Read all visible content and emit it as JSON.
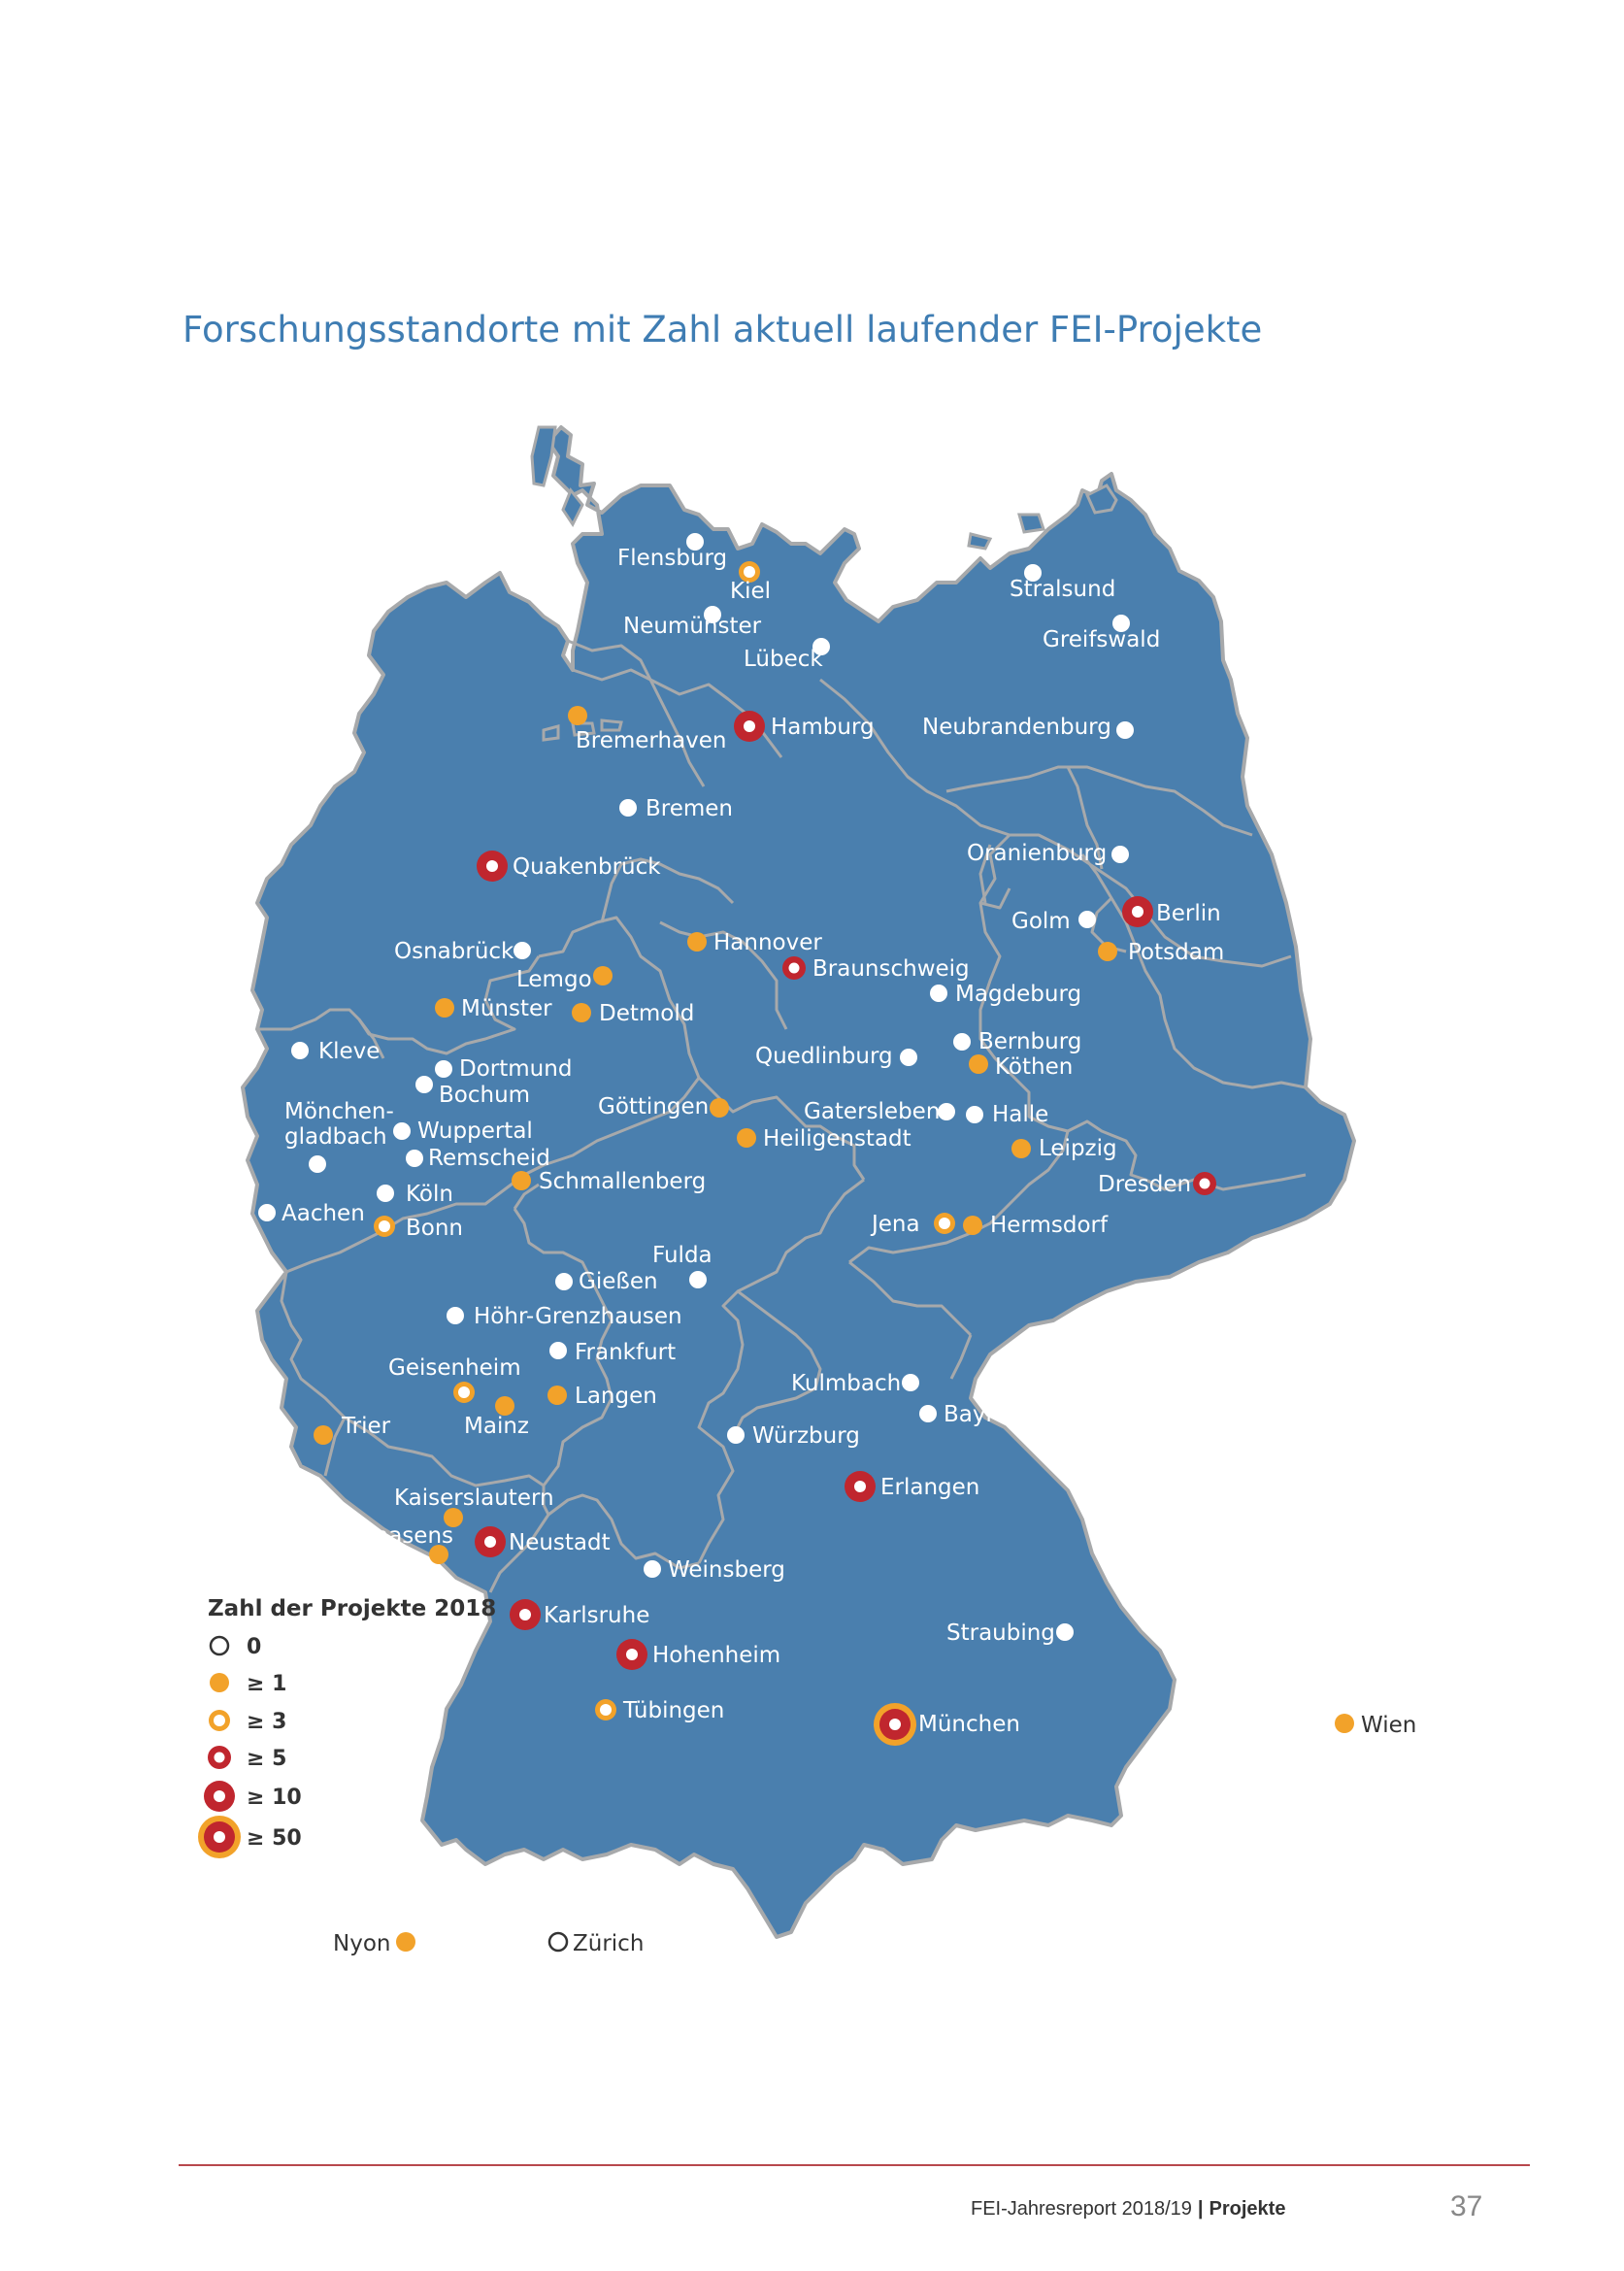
{
  "title": "Forschungsstandorte mit Zahl aktuell laufender FEI-Projekte",
  "colors": {
    "land": "#4a7fae",
    "border": "#a7a9ab",
    "label": "#ffffff",
    "white_marker": "#ffffff",
    "orange": "#f2a22a",
    "red": "#c0262e",
    "title": "#3f7db3",
    "footer_rule": "#b8484c"
  },
  "legend": {
    "title": "Zahl der Projekte 2018",
    "items": [
      {
        "category": "0",
        "label": "0"
      },
      {
        "category": "1",
        "label": "≥ 1"
      },
      {
        "category": "3",
        "label": "≥ 3"
      },
      {
        "category": "5",
        "label": "≥ 5"
      },
      {
        "category": "10",
        "label": "≥ 10"
      },
      {
        "category": "50",
        "label": "≥ 50"
      }
    ]
  },
  "cities": [
    {
      "name": "Flensburg",
      "category": "0"
    },
    {
      "name": "Kiel",
      "category": "3"
    },
    {
      "name": "Neumünster",
      "category": "0"
    },
    {
      "name": "Lübeck",
      "category": "0"
    },
    {
      "name": "Stralsund",
      "category": "0"
    },
    {
      "name": "Greifswald",
      "category": "0"
    },
    {
      "name": "Bremerhaven",
      "category": "1"
    },
    {
      "name": "Hamburg",
      "category": "10"
    },
    {
      "name": "Neubrandenburg",
      "category": "0"
    },
    {
      "name": "Bremen",
      "category": "0"
    },
    {
      "name": "Quakenbrück",
      "category": "10"
    },
    {
      "name": "Oranienburg",
      "category": "0"
    },
    {
      "name": "Golm",
      "category": "0"
    },
    {
      "name": "Berlin",
      "category": "10"
    },
    {
      "name": "Potsdam",
      "category": "1"
    },
    {
      "name": "Hannover",
      "category": "1"
    },
    {
      "name": "Braunschweig",
      "category": "5"
    },
    {
      "name": "Osnabrück",
      "category": "0"
    },
    {
      "name": "Lemgo",
      "category": "1"
    },
    {
      "name": "Münster",
      "category": "1"
    },
    {
      "name": "Detmold",
      "category": "1"
    },
    {
      "name": "Magdeburg",
      "category": "0"
    },
    {
      "name": "Kleve",
      "category": "0"
    },
    {
      "name": "Dortmund",
      "category": "0"
    },
    {
      "name": "Bochum",
      "category": "0"
    },
    {
      "name": "Quedlinburg",
      "category": "0"
    },
    {
      "name": "Bernburg",
      "category": "0"
    },
    {
      "name": "Köthen",
      "category": "1"
    },
    {
      "name": "Mönchen-",
      "category": "0"
    },
    {
      "name": "Wuppertal",
      "category": "0"
    },
    {
      "name": "Remscheid",
      "category": "0"
    },
    {
      "name": "Göttingen",
      "category": "1"
    },
    {
      "name": "Heiligenstadt",
      "category": "1"
    },
    {
      "name": "Gatersleben",
      "category": "0"
    },
    {
      "name": "Halle",
      "category": "0"
    },
    {
      "name": "Leipzig",
      "category": "1"
    },
    {
      "name": "Köln",
      "category": "0"
    },
    {
      "name": "Schmallenberg",
      "category": "1"
    },
    {
      "name": "Dresden",
      "category": "5"
    },
    {
      "name": "Aachen",
      "category": "0"
    },
    {
      "name": "Bonn",
      "category": "3"
    },
    {
      "name": "Jena",
      "category": "3"
    },
    {
      "name": "Hermsdorf",
      "category": "1"
    },
    {
      "name": "Fulda",
      "category": "0"
    },
    {
      "name": "Gießen",
      "category": "0"
    },
    {
      "name": "Höhr-Grenzhausen",
      "category": "0"
    },
    {
      "name": "Frankfurt",
      "category": "0"
    },
    {
      "name": "Geisenheim",
      "category": "3"
    },
    {
      "name": "Langen",
      "category": "1"
    },
    {
      "name": "Kulmbach",
      "category": "0"
    },
    {
      "name": "Trier",
      "category": "1"
    },
    {
      "name": "Mainz",
      "category": "1"
    },
    {
      "name": "Würzburg",
      "category": "0"
    },
    {
      "name": "Bayreuth",
      "category": "0"
    },
    {
      "name": "Erlangen",
      "category": "10"
    },
    {
      "name": "Kaiserslautern",
      "category": "1"
    },
    {
      "name": "Pirmasens",
      "category": "1"
    },
    {
      "name": "Neustadt",
      "category": "10"
    },
    {
      "name": "Weinsberg",
      "category": "0"
    },
    {
      "name": "Karlsruhe",
      "category": "10"
    },
    {
      "name": "Hohenheim",
      "category": "10"
    },
    {
      "name": "Straubing",
      "category": "0"
    },
    {
      "name": "Tübingen",
      "category": "3"
    },
    {
      "name": "München",
      "category": "50"
    },
    {
      "name": "Wien",
      "category": "1"
    },
    {
      "name": "Nyon",
      "category": "1"
    },
    {
      "name": "Zürich",
      "category": "0"
    }
  ],
  "label_line2": {
    "gladbach": "gladbach"
  },
  "footer": {
    "report": "FEI-Jahresreport 2018/19",
    "separator": "|",
    "section": "Projekte",
    "page": "37"
  }
}
